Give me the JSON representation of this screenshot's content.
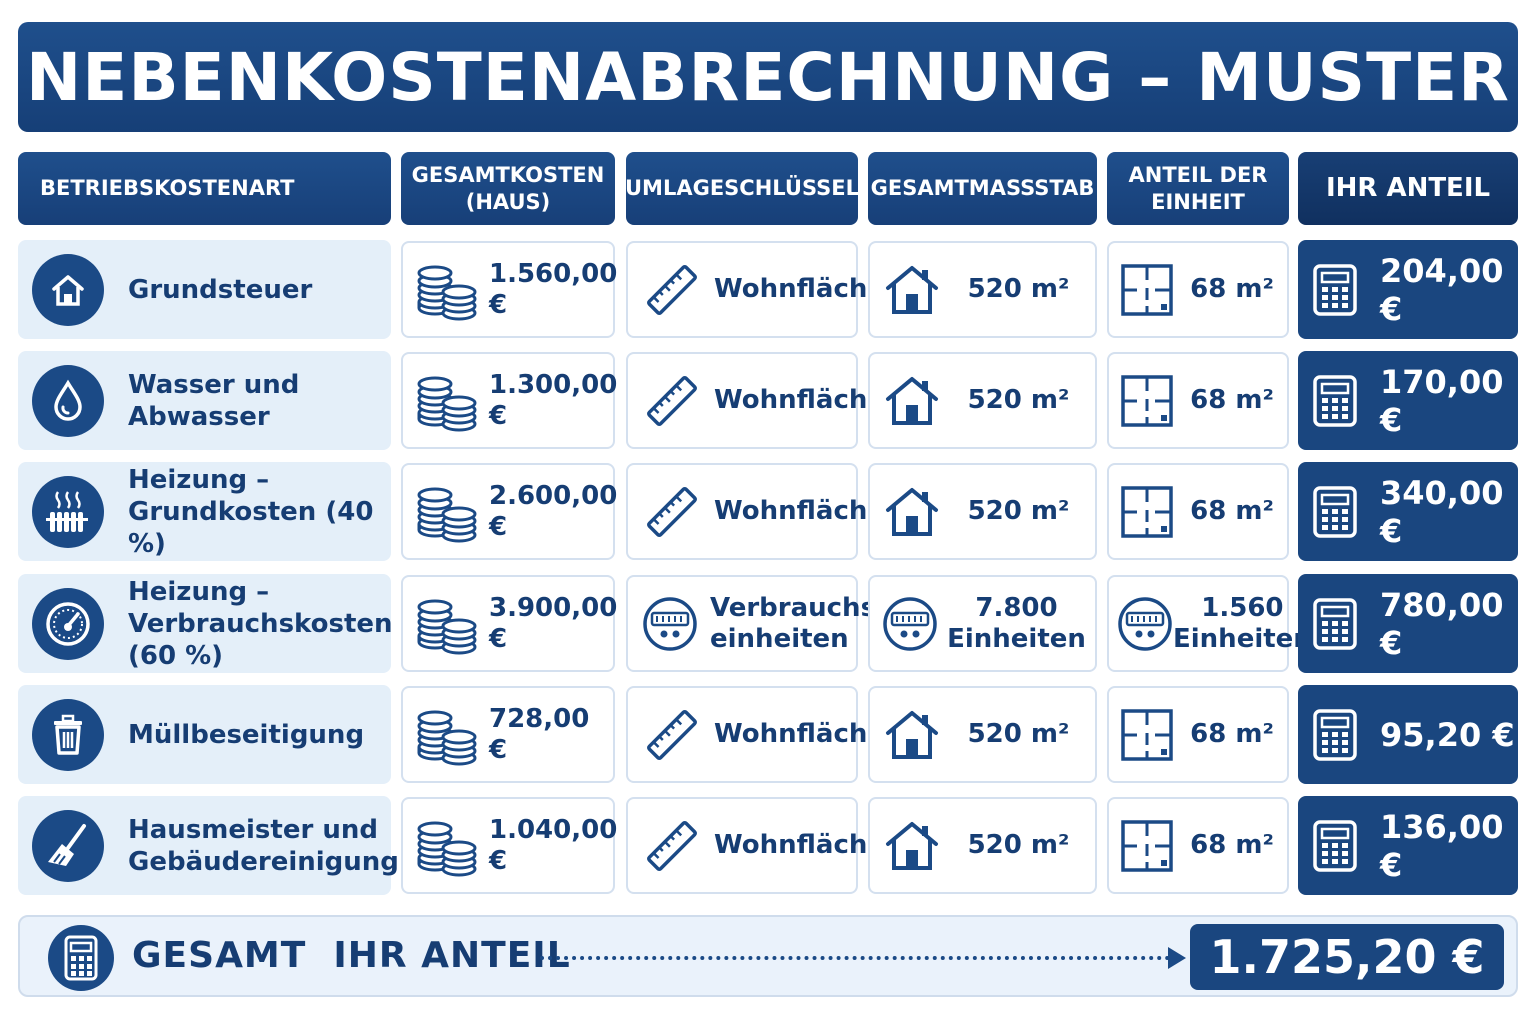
{
  "title": "NEBENKOSTENABRECHNUNG – MUSTER",
  "headers": {
    "category": "BETRIEBSKOSTENART",
    "total_cost_line1": "GESAMTKOSTEN",
    "total_cost_line2": "(HAUS)",
    "key": "UMLAGESCHLÜSSEL",
    "scale": "GESAMTMASSSTAB",
    "unit_share_line1": "ANTEIL DER",
    "unit_share_line2": "EINHEIT",
    "your_share": "IHR ANTEIL"
  },
  "rows": [
    {
      "category_line1": "Grundsteuer",
      "category_line2": "",
      "category_icon": "house-icon",
      "cost": "1.560,00 €",
      "key_line1": "Wohnfläche",
      "key_line2": "",
      "key_icon": "ruler-icon",
      "scale_line1": "520 m²",
      "scale_line2": "",
      "scale_icon": "house-outline-icon",
      "unit_line1": "68 m²",
      "unit_line2": "",
      "unit_icon": "floorplan-icon",
      "share": "204,00 €"
    },
    {
      "category_line1": "Wasser und",
      "category_line2": "Abwasser",
      "category_icon": "water-drop-icon",
      "cost": "1.300,00 €",
      "key_line1": "Wohnfläche",
      "key_line2": "",
      "key_icon": "ruler-icon",
      "scale_line1": "520 m²",
      "scale_line2": "",
      "scale_icon": "house-outline-icon",
      "unit_line1": "68 m²",
      "unit_line2": "",
      "unit_icon": "floorplan-icon",
      "share": "170,00 €"
    },
    {
      "category_line1": "Heizung –",
      "category_line2": "Grundkosten (40 %)",
      "category_icon": "radiator-icon",
      "cost": "2.600,00 €",
      "key_line1": "Wohnfläche",
      "key_line2": "",
      "key_icon": "ruler-icon",
      "scale_line1": "520 m²",
      "scale_line2": "",
      "scale_icon": "house-outline-icon",
      "unit_line1": "68 m²",
      "unit_line2": "",
      "unit_icon": "floorplan-icon",
      "share": "340,00 €"
    },
    {
      "category_line1": "Heizung –",
      "category_line2": "Verbrauchskosten (60 %)",
      "category_icon": "gauge-icon",
      "cost": "3.900,00 €",
      "key_line1": "Verbrauchs-",
      "key_line2": "einheiten",
      "key_icon": "meter-icon",
      "scale_line1": "7.800",
      "scale_line2": "Einheiten",
      "scale_icon": "meter-icon",
      "unit_line1": "1.560",
      "unit_line2": "Einheiten",
      "unit_icon": "meter-icon",
      "share": "780,00 €"
    },
    {
      "category_line1": "Müllbeseitigung",
      "category_line2": "",
      "category_icon": "trash-icon",
      "cost": "728,00 €",
      "key_line1": "Wohnfläche",
      "key_line2": "",
      "key_icon": "ruler-icon",
      "scale_line1": "520 m²",
      "scale_line2": "",
      "scale_icon": "house-outline-icon",
      "unit_line1": "68 m²",
      "unit_line2": "",
      "unit_icon": "floorplan-icon",
      "share": "95,20 €"
    },
    {
      "category_line1": "Hausmeister und",
      "category_line2": "Gebäudereinigung",
      "category_icon": "broom-icon",
      "cost": "1.040,00 €",
      "key_line1": "Wohnfläche",
      "key_line2": "",
      "key_icon": "ruler-icon",
      "scale_line1": "520 m²",
      "scale_line2": "",
      "scale_icon": "house-outline-icon",
      "unit_line1": "68 m²",
      "unit_line2": "",
      "unit_icon": "floorplan-icon",
      "share": "136,00 €"
    }
  ],
  "total": {
    "label": "GESAMT  IHR ANTEIL",
    "value": "1.725,20 €",
    "icon": "calculator-icon"
  },
  "colors": {
    "primary": "#1b4a86",
    "header": "#1f4f8c",
    "light": "#e4eff9"
  }
}
